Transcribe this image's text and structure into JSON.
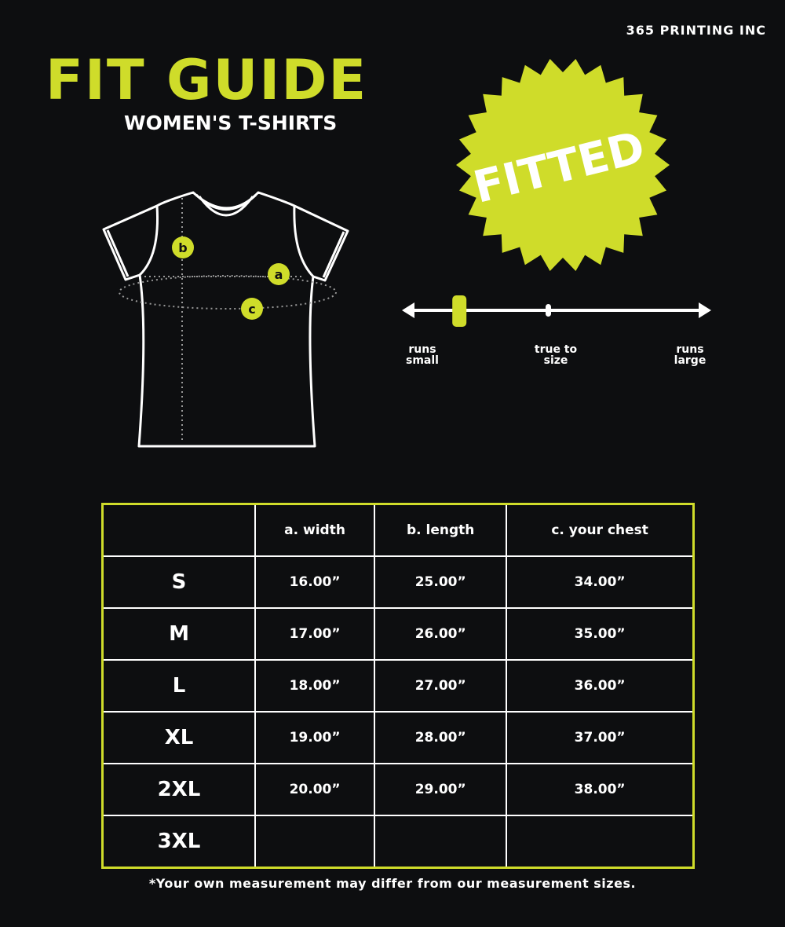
{
  "brand": "365 PRINTING INC",
  "title": "FIT GUIDE",
  "subtitle": "WOMEN'S T-SHIRTS",
  "badge": {
    "text": "FITTED",
    "color": "#cfdc2a"
  },
  "diagram": {
    "labels": [
      "a",
      "b",
      "c"
    ]
  },
  "fit_scale": {
    "position": 0.18,
    "labels": {
      "small": [
        "runs",
        "small"
      ],
      "true": [
        "true to",
        "size"
      ],
      "large": [
        "runs",
        "large"
      ]
    }
  },
  "table": {
    "headers": [
      "",
      "a. width",
      "b. length",
      "c. your chest"
    ],
    "rows": [
      {
        "size": "S",
        "width": "16.00”",
        "length": "25.00”",
        "chest": "34.00”"
      },
      {
        "size": "M",
        "width": "17.00”",
        "length": "26.00”",
        "chest": "35.00”"
      },
      {
        "size": "L",
        "width": "18.00”",
        "length": "27.00”",
        "chest": "36.00”"
      },
      {
        "size": "XL",
        "width": "19.00”",
        "length": "28.00”",
        "chest": "37.00”"
      },
      {
        "size": "2XL",
        "width": "20.00”",
        "length": "29.00”",
        "chest": "38.00”"
      },
      {
        "size": "3XL",
        "width": "",
        "length": "",
        "chest": ""
      }
    ]
  },
  "note": "*Your own measurement may differ from our measurement sizes."
}
